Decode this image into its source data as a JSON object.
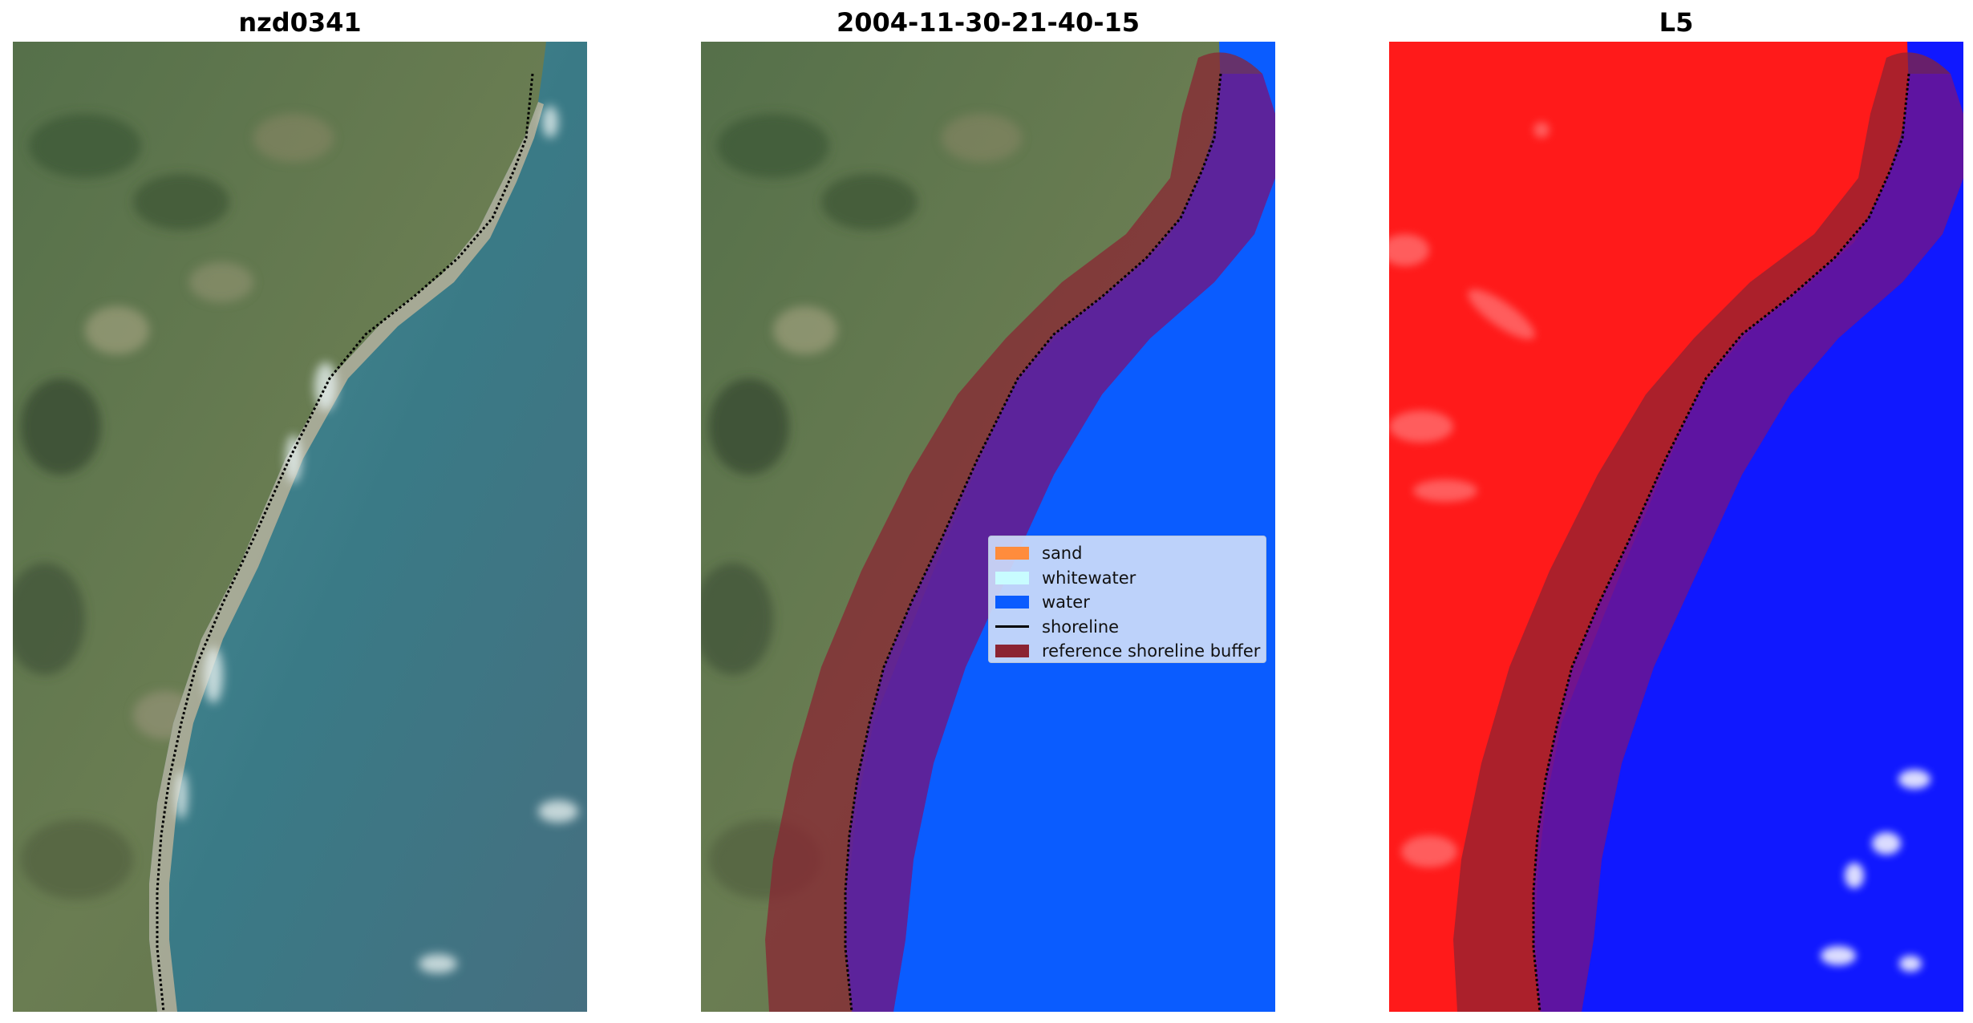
{
  "panels": [
    {
      "title": "nzd0341"
    },
    {
      "title": "2004-11-30-21-40-15"
    },
    {
      "title": "L5"
    }
  ],
  "legend": {
    "items": [
      {
        "label": "sand",
        "color": "#ff8c3c",
        "kind": "patch"
      },
      {
        "label": "whitewater",
        "color": "#c8fcff",
        "kind": "patch"
      },
      {
        "label": "water",
        "color": "#0a5cff",
        "kind": "patch"
      },
      {
        "label": "shoreline",
        "color": "#000000",
        "kind": "line"
      },
      {
        "label": "reference shoreline buffer",
        "color": "#8b2332",
        "kind": "patch"
      }
    ]
  },
  "colors": {
    "land": "#5d7a4e",
    "sea": "#3f7f8a",
    "classified_water": "#0a5cff",
    "buffer": "#8b2332",
    "l5_land": "#ff1a1a",
    "l5_water": "#1018ff"
  }
}
